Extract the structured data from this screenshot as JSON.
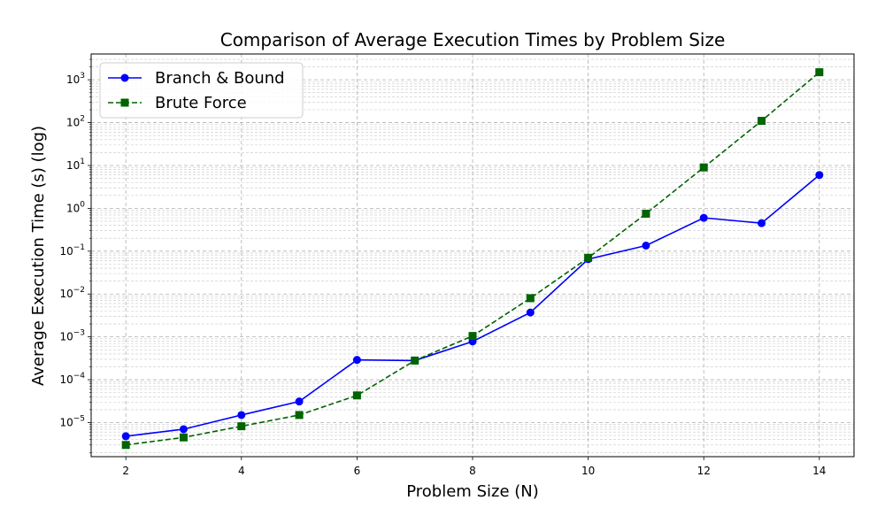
{
  "chart_data": {
    "type": "line",
    "title": "Comparison of Average Execution Times by Problem Size",
    "xlabel": "Problem Size (N)",
    "ylabel": "Average Execution Time (s) (log)",
    "xlim": [
      1.4,
      14.6
    ],
    "ylim": [
      1.6e-06,
      4000.0
    ],
    "yscale": "log",
    "grid": true,
    "legend_position": "top-left",
    "x_ticks": [
      2,
      4,
      6,
      8,
      10,
      12,
      14
    ],
    "y_ticks": [
      {
        "value": 1e-05,
        "base": "10",
        "exp": "−5"
      },
      {
        "value": 0.0001,
        "base": "10",
        "exp": "−4"
      },
      {
        "value": 0.001,
        "base": "10",
        "exp": "−3"
      },
      {
        "value": 0.01,
        "base": "10",
        "exp": "−2"
      },
      {
        "value": 0.1,
        "base": "10",
        "exp": "−1"
      },
      {
        "value": 1.0,
        "base": "10",
        "exp": "0"
      },
      {
        "value": 10.0,
        "base": "10",
        "exp": "1"
      },
      {
        "value": 100.0,
        "base": "10",
        "exp": "2"
      },
      {
        "value": 1000.0,
        "base": "10",
        "exp": "3"
      }
    ],
    "x": [
      2,
      3,
      4,
      5,
      6,
      7,
      8,
      9,
      10,
      11,
      12,
      13,
      14
    ],
    "series": [
      {
        "name": "Branch & Bound",
        "color": "#0000ff",
        "marker": "circle",
        "dash": "solid",
        "values": [
          4.8e-06,
          7e-06,
          1.5e-05,
          3.1e-05,
          0.00029,
          0.00028,
          0.00078,
          0.0037,
          0.065,
          0.135,
          0.6,
          0.45,
          6.0
        ]
      },
      {
        "name": "Brute Force",
        "color": "#006400",
        "marker": "square",
        "dash": "dashed",
        "values": [
          3e-06,
          4.5e-06,
          8.2e-06,
          1.5e-05,
          4.3e-05,
          0.00028,
          0.00105,
          0.008,
          0.07,
          0.75,
          9.0,
          110,
          1500
        ]
      }
    ]
  }
}
